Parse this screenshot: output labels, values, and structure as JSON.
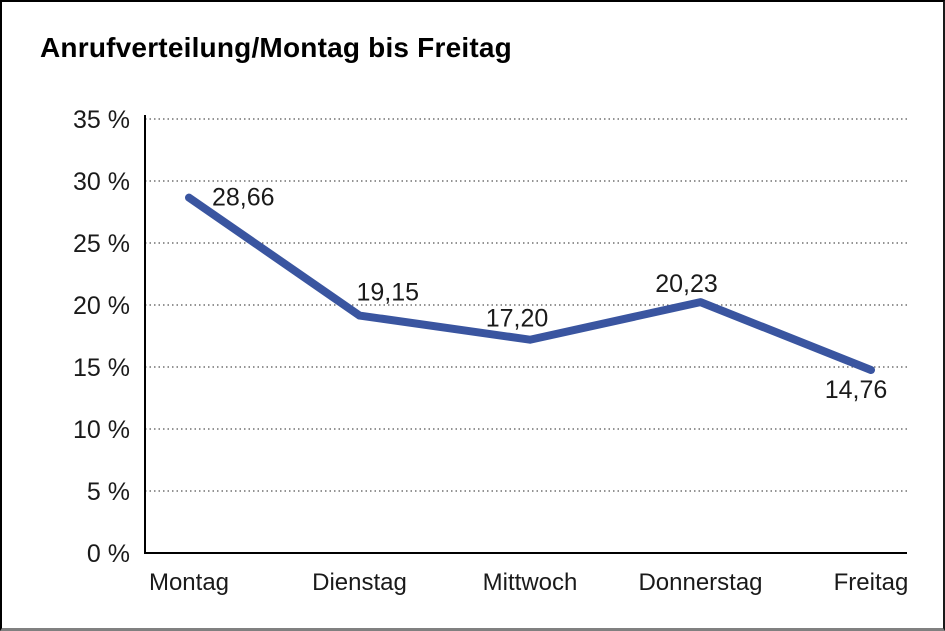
{
  "chart_data": {
    "type": "line",
    "title": "Anrufverteilung/Montag bis Freitag",
    "categories": [
      "Montag",
      "Dienstag",
      "Mittwoch",
      "Donnerstag",
      "Freitag"
    ],
    "values": [
      28.66,
      19.15,
      17.2,
      20.23,
      14.76
    ],
    "value_labels": [
      "28,66",
      "19,15",
      "17,20",
      "20,23",
      "14,76"
    ],
    "xlabel": "",
    "ylabel": "",
    "ylim": [
      0,
      35
    ],
    "y_tick_step": 5,
    "y_tick_labels": [
      "35 %",
      "30 %",
      "25 %",
      "20 %",
      "15 %",
      "10 %",
      "5 %",
      "0 %"
    ],
    "grid": "horizontal-dotted",
    "legend": "none",
    "colors": {
      "line": "#3A55A0",
      "gridline": "#555555",
      "axis": "#000000",
      "text": "#1a1a1a"
    }
  }
}
